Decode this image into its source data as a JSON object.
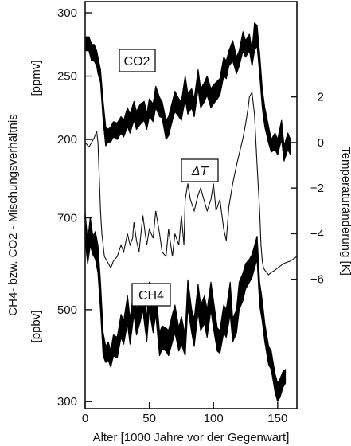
{
  "chart_data": {
    "type": "line",
    "title": "",
    "xlabel": "Alter [1000 Jahre vor der Gegenwart]",
    "ylabel_left": "CH4- bzw. CO2 - Mischungsverhältnis",
    "ylabel_right": "Temperaturänderung  [K]",
    "xlim": [
      0,
      165
    ],
    "xticks": [
      0,
      50,
      100,
      150
    ],
    "grid": false,
    "panels": {
      "co2": {
        "name": "CO2",
        "unit": "[ppmv]",
        "ylim": [
          190,
          300
        ],
        "ticks": [
          200,
          250,
          300
        ],
        "x": [
          0,
          3,
          5,
          7,
          9,
          10,
          12,
          14,
          16,
          18,
          20,
          22,
          25,
          28,
          30,
          33,
          35,
          38,
          40,
          43,
          46,
          48,
          50,
          53,
          55,
          58,
          60,
          63,
          65,
          68,
          70,
          73,
          75,
          78,
          80,
          83,
          85,
          88,
          90,
          93,
          95,
          98,
          100,
          103,
          105,
          108,
          110,
          112,
          115,
          118,
          120,
          123,
          125,
          128,
          130,
          132,
          134,
          136,
          138,
          140,
          143,
          145,
          148,
          150,
          153,
          155,
          158,
          160
        ],
        "upper": [
          281,
          281,
          275,
          275,
          270,
          265,
          255,
          230,
          210,
          208,
          210,
          214,
          213,
          218,
          215,
          225,
          220,
          230,
          222,
          228,
          230,
          220,
          232,
          228,
          242,
          233,
          230,
          215,
          218,
          230,
          238,
          232,
          230,
          250,
          236,
          240,
          232,
          255,
          240,
          245,
          250,
          240,
          243,
          246,
          248,
          265,
          262,
          270,
          278,
          265,
          270,
          285,
          278,
          283,
          270,
          292,
          290,
          268,
          240,
          225,
          210,
          200,
          205,
          200,
          215,
          195,
          205,
          200
        ],
        "lower": [
          270,
          270,
          262,
          262,
          258,
          252,
          245,
          215,
          195,
          198,
          198,
          202,
          200,
          205,
          202,
          210,
          205,
          215,
          208,
          212,
          215,
          208,
          218,
          214,
          225,
          218,
          217,
          200,
          203,
          215,
          222,
          218,
          215,
          232,
          220,
          225,
          218,
          240,
          225,
          230,
          235,
          225,
          228,
          232,
          235,
          250,
          248,
          258,
          262,
          252,
          258,
          270,
          265,
          270,
          258,
          270,
          274,
          252,
          225,
          210,
          197,
          190,
          192,
          188,
          200,
          183,
          192,
          188
        ]
      },
      "dt": {
        "name": "ΔT",
        "ylim": [
          -6.5,
          3
        ],
        "ticks": [
          -6,
          -4,
          -2,
          0,
          2
        ],
        "x": [
          0,
          3,
          5,
          7,
          9,
          10,
          11,
          12,
          13,
          15,
          18,
          20,
          22,
          25,
          28,
          30,
          33,
          35,
          37,
          38,
          40,
          42,
          45,
          48,
          50,
          53,
          55,
          58,
          60,
          63,
          65,
          68,
          70,
          73,
          75,
          77,
          78,
          80,
          82,
          85,
          88,
          90,
          93,
          95,
          98,
          100,
          102,
          105,
          108,
          110,
          112,
          115,
          118,
          120,
          123,
          125,
          127,
          128,
          130,
          132,
          134,
          136,
          137,
          138,
          139,
          140,
          143,
          145,
          148,
          150,
          155,
          160,
          165
        ],
        "y": [
          0,
          -0.2,
          0,
          0.2,
          0.5,
          0,
          -1.5,
          -3,
          -4,
          -5,
          -5.3,
          -5.5,
          -5.2,
          -5,
          -4.5,
          -4.8,
          -4,
          -4.5,
          -4.2,
          -3.5,
          -4.3,
          -4.8,
          -3.2,
          -4.5,
          -3.8,
          -4.2,
          -3,
          -4,
          -4.8,
          -5,
          -3.8,
          -5,
          -4,
          -4.5,
          -3.2,
          -4.5,
          -2.5,
          -1.8,
          -2.5,
          -3,
          -2.3,
          -2,
          -2.6,
          -3,
          -2.5,
          -1.8,
          -3,
          -2.5,
          -3.8,
          -4.3,
          -2.8,
          -1.8,
          -1,
          -0.5,
          0.2,
          0.8,
          1.5,
          2,
          2.2,
          1.2,
          -1,
          -3,
          -4.5,
          -5.2,
          -5.5,
          -5.6,
          -5.8,
          -5.7,
          -5.6,
          -5.5,
          -5.3,
          -5.2,
          -5
        ]
      },
      "ch4": {
        "name": "CH4",
        "unit": "[ppbv]",
        "ylim": [
          290,
          720
        ],
        "ticks": [
          300,
          500,
          700
        ],
        "x": [
          0,
          2,
          4,
          6,
          8,
          10,
          12,
          14,
          16,
          18,
          20,
          22,
          25,
          28,
          30,
          33,
          35,
          38,
          40,
          43,
          45,
          48,
          50,
          53,
          55,
          58,
          60,
          63,
          65,
          68,
          70,
          73,
          75,
          78,
          80,
          83,
          85,
          88,
          90,
          93,
          95,
          98,
          100,
          103,
          105,
          108,
          110,
          113,
          115,
          118,
          120,
          123,
          125,
          128,
          130,
          132,
          134,
          136,
          138,
          140,
          143,
          145,
          148,
          150,
          152,
          154,
          156
        ],
        "upper": [
          710,
          650,
          700,
          660,
          670,
          640,
          560,
          450,
          420,
          430,
          410,
          445,
          440,
          490,
          475,
          530,
          480,
          545,
          500,
          530,
          555,
          480,
          560,
          510,
          545,
          450,
          465,
          460,
          455,
          490,
          510,
          460,
          485,
          445,
          565,
          500,
          480,
          555,
          510,
          530,
          500,
          560,
          520,
          460,
          455,
          510,
          500,
          560,
          480,
          500,
          560,
          580,
          600,
          610,
          620,
          640,
          660,
          560,
          520,
          470,
          420,
          410,
          360,
          340,
          350,
          365,
          370
        ],
        "lower": [
          650,
          600,
          640,
          620,
          610,
          580,
          500,
          400,
          385,
          390,
          375,
          400,
          395,
          440,
          425,
          470,
          425,
          490,
          445,
          475,
          500,
          430,
          500,
          450,
          490,
          400,
          415,
          410,
          400,
          430,
          450,
          410,
          425,
          400,
          505,
          450,
          420,
          495,
          455,
          470,
          440,
          500,
          460,
          410,
          405,
          450,
          440,
          490,
          430,
          450,
          500,
          520,
          545,
          560,
          570,
          590,
          610,
          510,
          475,
          430,
          380,
          370,
          320,
          300,
          310,
          330,
          340
        ]
      }
    }
  },
  "labels": {
    "co2_box": "CO2",
    "dt_box": "ΔT",
    "ch4_box": "CH4"
  }
}
